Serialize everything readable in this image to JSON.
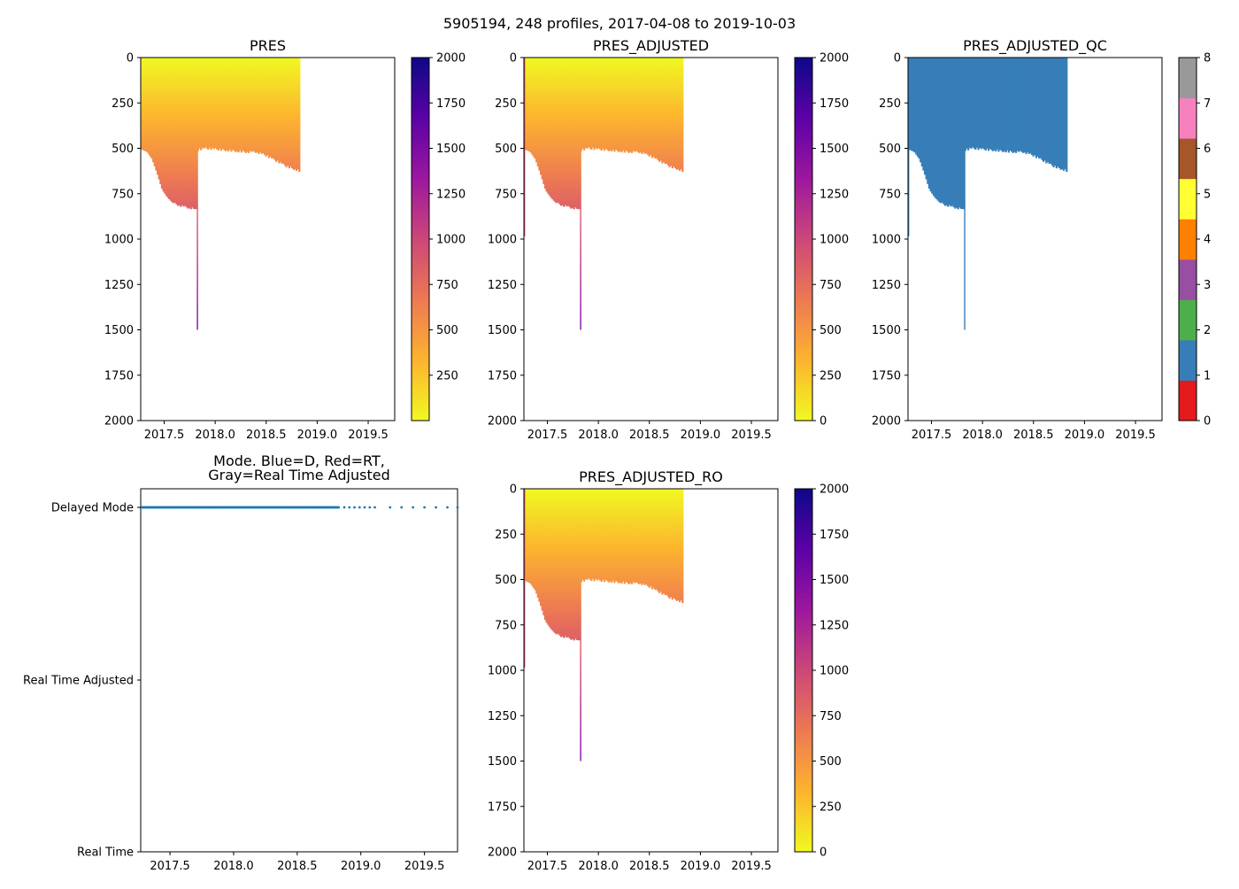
{
  "suptitle": "5905194, 248 profiles, 2017-04-08 to 2019-10-03",
  "colors": {
    "qc": [
      "#e41a1c",
      "#377eb8",
      "#4daf4a",
      "#984ea3",
      "#ff7f00",
      "#ffff33",
      "#a65628",
      "#f781bf",
      "#999999"
    ],
    "plasma_stops": [
      "#f0f921",
      "#fdb32f",
      "#ed7953",
      "#cc4778",
      "#9c179e",
      "#5c01a6",
      "#0d0887"
    ],
    "mode_dot": "#1f77b4"
  },
  "chart_data": [
    {
      "id": "pres",
      "type": "heatmap",
      "title": "PRES",
      "variable": "PRES",
      "colormap": "plasma_r",
      "xlim": [
        2017.27,
        2019.76
      ],
      "ylim": [
        2000,
        0
      ],
      "xticks": [
        "2017.5",
        "2018.0",
        "2018.5",
        "2019.0",
        "2019.5"
      ],
      "xtick_values": [
        2017.5,
        2018.0,
        2018.5,
        2019.0,
        2019.5
      ],
      "yticks": [
        "0",
        "250",
        "500",
        "750",
        "1000",
        "1250",
        "1500",
        "1750",
        "2000"
      ],
      "ytick_values": [
        0,
        250,
        500,
        750,
        1000,
        1250,
        1500,
        1750,
        2000
      ],
      "clim": [
        0,
        2000
      ],
      "colorbar_ticks": [
        "250",
        "500",
        "750",
        "1000",
        "1250",
        "1500",
        "1750",
        "2000"
      ],
      "colorbar_tick_values": [
        250,
        500,
        750,
        1000,
        1250,
        1500,
        1750,
        2000
      ],
      "show_early_spike": false
    },
    {
      "id": "pres_adjusted",
      "type": "heatmap",
      "title": "PRES_ADJUSTED",
      "variable": "PRES_ADJUSTED",
      "colormap": "plasma_r",
      "xlim": [
        2017.27,
        2019.76
      ],
      "ylim": [
        2000,
        0
      ],
      "xticks": [
        "2017.5",
        "2018.0",
        "2018.5",
        "2019.0",
        "2019.5"
      ],
      "xtick_values": [
        2017.5,
        2018.0,
        2018.5,
        2019.0,
        2019.5
      ],
      "yticks": [
        "0",
        "250",
        "500",
        "750",
        "1000",
        "1250",
        "1500",
        "1750",
        "2000"
      ],
      "ytick_values": [
        0,
        250,
        500,
        750,
        1000,
        1250,
        1500,
        1750,
        2000
      ],
      "clim": [
        0,
        2000
      ],
      "colorbar_ticks": [
        "0",
        "250",
        "500",
        "750",
        "1000",
        "1250",
        "1500",
        "1750",
        "2000"
      ],
      "colorbar_tick_values": [
        0,
        250,
        500,
        750,
        1000,
        1250,
        1500,
        1750,
        2000
      ],
      "show_early_spike": true
    },
    {
      "id": "pres_adjusted_qc",
      "type": "heatmap",
      "title": "PRES_ADJUSTED_QC",
      "variable": "PRES_ADJUSTED_QC",
      "colormap": "qc",
      "qc_value": 1,
      "xlim": [
        2017.27,
        2019.76
      ],
      "ylim": [
        2000,
        0
      ],
      "xticks": [
        "2017.5",
        "2018.0",
        "2018.5",
        "2019.0",
        "2019.5"
      ],
      "xtick_values": [
        2017.5,
        2018.0,
        2018.5,
        2019.0,
        2019.5
      ],
      "yticks": [
        "0",
        "250",
        "500",
        "750",
        "1000",
        "1250",
        "1500",
        "1750",
        "2000"
      ],
      "ytick_values": [
        0,
        250,
        500,
        750,
        1000,
        1250,
        1500,
        1750,
        2000
      ],
      "clim": [
        0,
        8
      ],
      "colorbar_ticks": [
        "0",
        "1",
        "2",
        "3",
        "4",
        "5",
        "6",
        "7",
        "8"
      ],
      "colorbar_tick_values": [
        0,
        1,
        2,
        3,
        4,
        5,
        6,
        7,
        8
      ],
      "show_early_spike": true
    },
    {
      "id": "mode",
      "type": "scatter",
      "title_lines": [
        "Mode. Blue=D, Red=RT,",
        "Gray=Real Time Adjusted"
      ],
      "xlim": [
        2017.27,
        2019.76
      ],
      "xticks": [
        "2017.5",
        "2018.0",
        "2018.5",
        "2019.0",
        "2019.5"
      ],
      "xtick_values": [
        2017.5,
        2018.0,
        2018.5,
        2019.0,
        2019.5
      ],
      "ycategories": [
        "Delayed Mode",
        "Real Time Adjusted",
        "Real Time"
      ],
      "dense_range": [
        2017.27,
        2018.83
      ],
      "dense_step": 0.0055,
      "sparse_x": [
        2018.87,
        2018.91,
        2018.95,
        2018.99,
        2019.03,
        2019.07,
        2019.11,
        2019.23,
        2019.32,
        2019.41,
        2019.5,
        2019.59,
        2019.68,
        2019.76
      ],
      "mode_value": "Delayed Mode"
    },
    {
      "id": "pres_adjusted_ro",
      "type": "heatmap",
      "title": "PRES_ADJUSTED_RO",
      "variable": "PRES_ADJUSTED_RO",
      "colormap": "plasma_r",
      "xlim": [
        2017.27,
        2019.76
      ],
      "ylim": [
        2000,
        0
      ],
      "xticks": [
        "2017.5",
        "2018.0",
        "2018.5",
        "2019.0",
        "2019.5"
      ],
      "xtick_values": [
        2017.5,
        2018.0,
        2018.5,
        2019.0,
        2019.5
      ],
      "yticks": [
        "0",
        "250",
        "500",
        "750",
        "1000",
        "1250",
        "1500",
        "1750",
        "2000"
      ],
      "ytick_values": [
        0,
        250,
        500,
        750,
        1000,
        1250,
        1500,
        1750,
        2000
      ],
      "clim": [
        0,
        2000
      ],
      "colorbar_ticks": [
        "0",
        "250",
        "500",
        "750",
        "1000",
        "1250",
        "1500",
        "1750",
        "2000"
      ],
      "colorbar_tick_values": [
        0,
        250,
        500,
        750,
        1000,
        1250,
        1500,
        1750,
        2000
      ],
      "show_early_spike": true
    }
  ],
  "profile_depths": {
    "t_start": 2017.27,
    "t_end": 2018.83,
    "early_spike": {
      "t": 2017.27,
      "depth": 985
    },
    "deep_spike": {
      "t": 2017.82,
      "depth": 1500
    },
    "depth_knots": [
      [
        2017.27,
        505
      ],
      [
        2017.33,
        520
      ],
      [
        2017.38,
        560
      ],
      [
        2017.43,
        640
      ],
      [
        2017.48,
        730
      ],
      [
        2017.53,
        770
      ],
      [
        2017.58,
        800
      ],
      [
        2017.65,
        815
      ],
      [
        2017.72,
        825
      ],
      [
        2017.8,
        835
      ],
      [
        2017.82,
        510
      ],
      [
        2017.9,
        500
      ],
      [
        2018.0,
        505
      ],
      [
        2018.1,
        510
      ],
      [
        2018.2,
        515
      ],
      [
        2018.3,
        520
      ],
      [
        2018.4,
        520
      ],
      [
        2018.5,
        540
      ],
      [
        2018.6,
        570
      ],
      [
        2018.7,
        600
      ],
      [
        2018.78,
        615
      ],
      [
        2018.83,
        625
      ]
    ]
  }
}
